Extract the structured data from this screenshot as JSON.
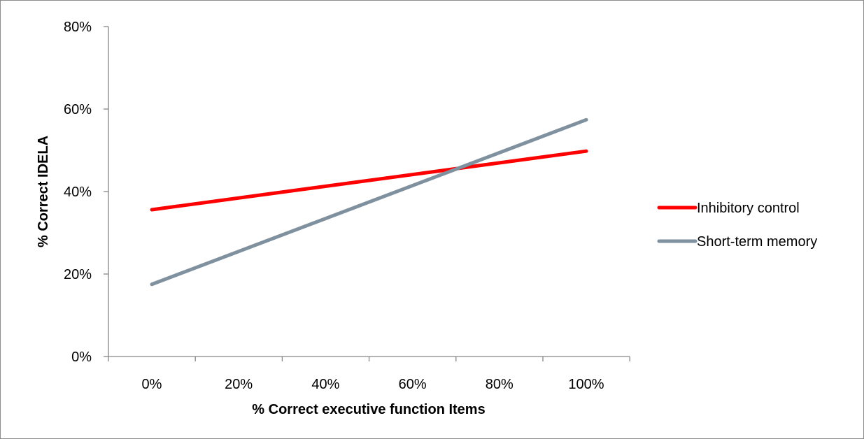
{
  "chart_data": {
    "type": "line",
    "title": "",
    "xlabel": "% Correct executive function Items",
    "ylabel": "% Correct IDELA",
    "x_ticks": [
      "0%",
      "20%",
      "40%",
      "60%",
      "80%",
      "100%"
    ],
    "y_ticks": [
      "0%",
      "20%",
      "40%",
      "60%",
      "80%"
    ],
    "xlim": [
      0,
      100
    ],
    "ylim": [
      0,
      80
    ],
    "grid": false,
    "legend_position": "right",
    "series": [
      {
        "name": "Inhibitory control",
        "color": "#ff0000",
        "x": [
          0,
          100
        ],
        "y": [
          35.6,
          49.8
        ]
      },
      {
        "name": "Short-term memory",
        "color": "#7f919e",
        "x": [
          0,
          100
        ],
        "y": [
          17.5,
          57.4
        ]
      }
    ]
  }
}
